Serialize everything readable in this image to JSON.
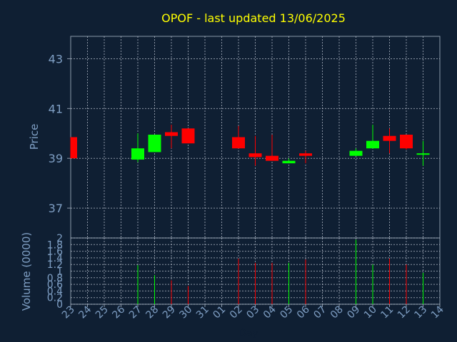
{
  "chart_data": {
    "type": "candlestick",
    "title": "OPOF - last updated 13/06/2025",
    "xlabel": "Day",
    "colors": {
      "background": "#0f1f33",
      "axis_text": "#7f9fc4",
      "title": "#ffff00",
      "grid": "#c0c8d4",
      "up": "#00ff00",
      "down": "#ff0000"
    },
    "categories": [
      "23",
      "24",
      "25",
      "26",
      "27",
      "28",
      "29",
      "30",
      "31",
      "01",
      "02",
      "03",
      "04",
      "05",
      "06",
      "07",
      "08",
      "09",
      "10",
      "11",
      "12",
      "13",
      "14"
    ],
    "price": {
      "ylabel": "Price",
      "ylim": [
        35.8,
        43.9
      ],
      "ticks": [
        37,
        39,
        41,
        43
      ],
      "grid": true,
      "candles": [
        {
          "x": "23",
          "open": 39.85,
          "high": 39.85,
          "low": 39.0,
          "close": 39.0
        },
        {
          "x": "27",
          "open": 38.95,
          "high": 40.0,
          "low": 38.85,
          "close": 39.4
        },
        {
          "x": "28",
          "open": 39.25,
          "high": 39.95,
          "low": 39.25,
          "close": 39.95
        },
        {
          "x": "29",
          "open": 40.05,
          "high": 40.35,
          "low": 39.4,
          "close": 39.9
        },
        {
          "x": "30",
          "open": 40.2,
          "high": 40.2,
          "low": 39.6,
          "close": 39.6
        },
        {
          "x": "02",
          "open": 39.85,
          "high": 40.3,
          "low": 39.4,
          "close": 39.4
        },
        {
          "x": "03",
          "open": 39.2,
          "high": 39.9,
          "low": 38.7,
          "close": 39.05
        },
        {
          "x": "04",
          "open": 39.1,
          "high": 39.95,
          "low": 38.9,
          "close": 38.9
        },
        {
          "x": "05",
          "open": 38.8,
          "high": 39.0,
          "low": 38.8,
          "close": 38.9
        },
        {
          "x": "06",
          "open": 39.2,
          "high": 39.3,
          "low": 38.8,
          "close": 39.1
        },
        {
          "x": "09",
          "open": 39.1,
          "high": 39.4,
          "low": 39.1,
          "close": 39.3
        },
        {
          "x": "10",
          "open": 39.4,
          "high": 40.35,
          "low": 39.4,
          "close": 39.7
        },
        {
          "x": "11",
          "open": 39.9,
          "high": 40.2,
          "low": 39.2,
          "close": 39.7
        },
        {
          "x": "12",
          "open": 39.95,
          "high": 39.95,
          "low": 39.35,
          "close": 39.4
        },
        {
          "x": "13",
          "open": 39.2,
          "high": 39.7,
          "low": 38.7,
          "close": 39.2
        }
      ]
    },
    "volume": {
      "ylabel": "Volume (0000)",
      "ylim": [
        0,
        2
      ],
      "ticks": [
        0,
        0.2,
        0.4,
        0.6,
        0.8,
        1.0,
        1.2,
        1.4,
        1.6,
        1.8,
        2
      ],
      "tick_labels": [
        "0",
        "0.2",
        "0.4",
        "0.6",
        "0.8",
        "1",
        "1.2",
        "1.4",
        "1.6",
        "1.8",
        "2"
      ],
      "bars": [
        {
          "x": "27",
          "value": 1.18,
          "direction": "up"
        },
        {
          "x": "28",
          "value": 0.88,
          "direction": "up"
        },
        {
          "x": "29",
          "value": 0.72,
          "direction": "down"
        },
        {
          "x": "30",
          "value": 0.55,
          "direction": "down"
        },
        {
          "x": "02",
          "value": 1.38,
          "direction": "down"
        },
        {
          "x": "03",
          "value": 1.25,
          "direction": "down"
        },
        {
          "x": "04",
          "value": 1.25,
          "direction": "down"
        },
        {
          "x": "05",
          "value": 1.25,
          "direction": "up"
        },
        {
          "x": "06",
          "value": 1.35,
          "direction": "down"
        },
        {
          "x": "09",
          "value": 1.95,
          "direction": "up"
        },
        {
          "x": "10",
          "value": 1.2,
          "direction": "up"
        },
        {
          "x": "11",
          "value": 1.38,
          "direction": "down"
        },
        {
          "x": "12",
          "value": 1.2,
          "direction": "down"
        },
        {
          "x": "13",
          "value": 0.95,
          "direction": "up"
        }
      ]
    }
  }
}
